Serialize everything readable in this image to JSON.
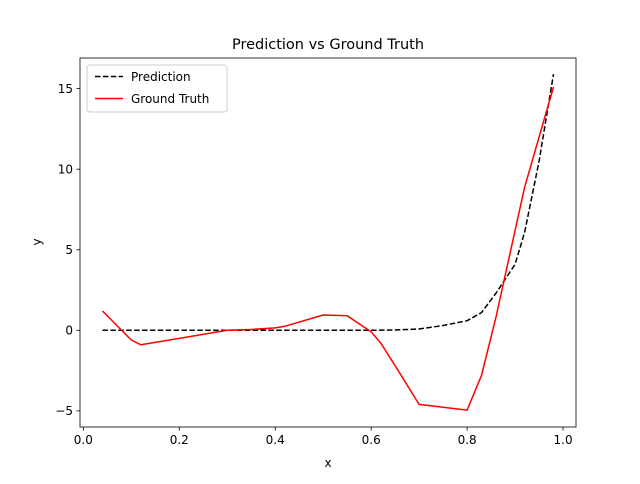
{
  "chart_data": {
    "type": "line",
    "title": "Prediction vs Ground Truth",
    "xlabel": "x",
    "ylabel": "y",
    "xlim": [
      -0.007,
      1.027
    ],
    "ylim": [
      -6.0,
      16.9
    ],
    "xticks": [
      0.0,
      0.2,
      0.4,
      0.6,
      0.8,
      1.0
    ],
    "xtick_labels": [
      "0.0",
      "0.2",
      "0.4",
      "0.6",
      "0.8",
      "1.0"
    ],
    "yticks": [
      -5,
      0,
      5,
      10,
      15
    ],
    "ytick_labels": [
      "−5",
      "0",
      "5",
      "10",
      "15"
    ],
    "grid": false,
    "legend": "top-left",
    "series": [
      {
        "name": "Prediction",
        "color": "#000000",
        "style": "dashed",
        "x": [
          0.04,
          0.1,
          0.2,
          0.3,
          0.4,
          0.5,
          0.6,
          0.65,
          0.7,
          0.75,
          0.8,
          0.83,
          0.86,
          0.9,
          0.92,
          0.95,
          0.98
        ],
        "y": [
          0.0,
          0.0,
          0.0,
          0.0,
          0.0,
          0.0,
          0.0,
          0.02,
          0.08,
          0.3,
          0.6,
          1.1,
          2.3,
          4.1,
          6.1,
          10.5,
          15.9
        ]
      },
      {
        "name": "Ground Truth",
        "color": "#ff0000",
        "style": "solid",
        "x": [
          0.04,
          0.1,
          0.12,
          0.2,
          0.3,
          0.35,
          0.4,
          0.42,
          0.5,
          0.55,
          0.6,
          0.62,
          0.65,
          0.7,
          0.8,
          0.83,
          0.86,
          0.88,
          0.92,
          0.98
        ],
        "y": [
          1.2,
          -0.6,
          -0.9,
          -0.5,
          0.0,
          0.05,
          0.15,
          0.25,
          0.95,
          0.9,
          -0.1,
          -0.8,
          -2.2,
          -4.6,
          -4.95,
          -2.8,
          0.8,
          3.5,
          8.9,
          15.1
        ]
      }
    ]
  }
}
